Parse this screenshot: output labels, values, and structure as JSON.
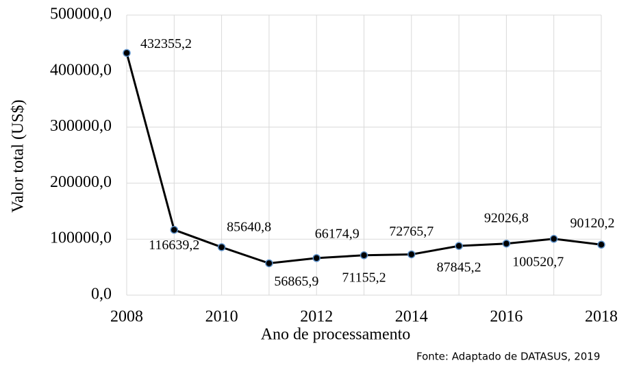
{
  "chart_data": {
    "type": "line",
    "x_label": "Ano de processamento",
    "y_label": "Valor total (US$)",
    "source": "Fonte: Adaptado de DATASUS, 2019",
    "x": [
      2008,
      2009,
      2010,
      2011,
      2012,
      2013,
      2014,
      2015,
      2016,
      2017,
      2018
    ],
    "series": [
      {
        "name": "Valor total",
        "color": "#000000",
        "marker_color": "#1f3a5f",
        "values": [
          432355.2,
          116639.2,
          85640.8,
          56865.9,
          66174.9,
          71155.2,
          72765.7,
          87845.2,
          92026.8,
          100520.7,
          90120.2
        ],
        "value_labels": [
          "432355,2",
          "116639,2",
          "85640,8",
          "56865,9",
          "66174,9",
          "71155,2",
          "72765,7",
          "87845,2",
          "92026,8",
          "100520,7",
          "90120,2"
        ]
      }
    ],
    "xlim": [
      2008,
      2018
    ],
    "xticks": [
      2008,
      2010,
      2012,
      2014,
      2016,
      2018
    ],
    "ylim": [
      0,
      500000
    ],
    "yticks": [
      {
        "value": 0,
        "label": "0,0"
      },
      {
        "value": 100000,
        "label": "100000,0"
      },
      {
        "value": 200000,
        "label": "200000,0"
      },
      {
        "value": 300000,
        "label": "300000,0"
      },
      {
        "value": 400000,
        "label": "400000,0"
      },
      {
        "value": 500000,
        "label": "500000,0"
      }
    ],
    "grid": true
  }
}
